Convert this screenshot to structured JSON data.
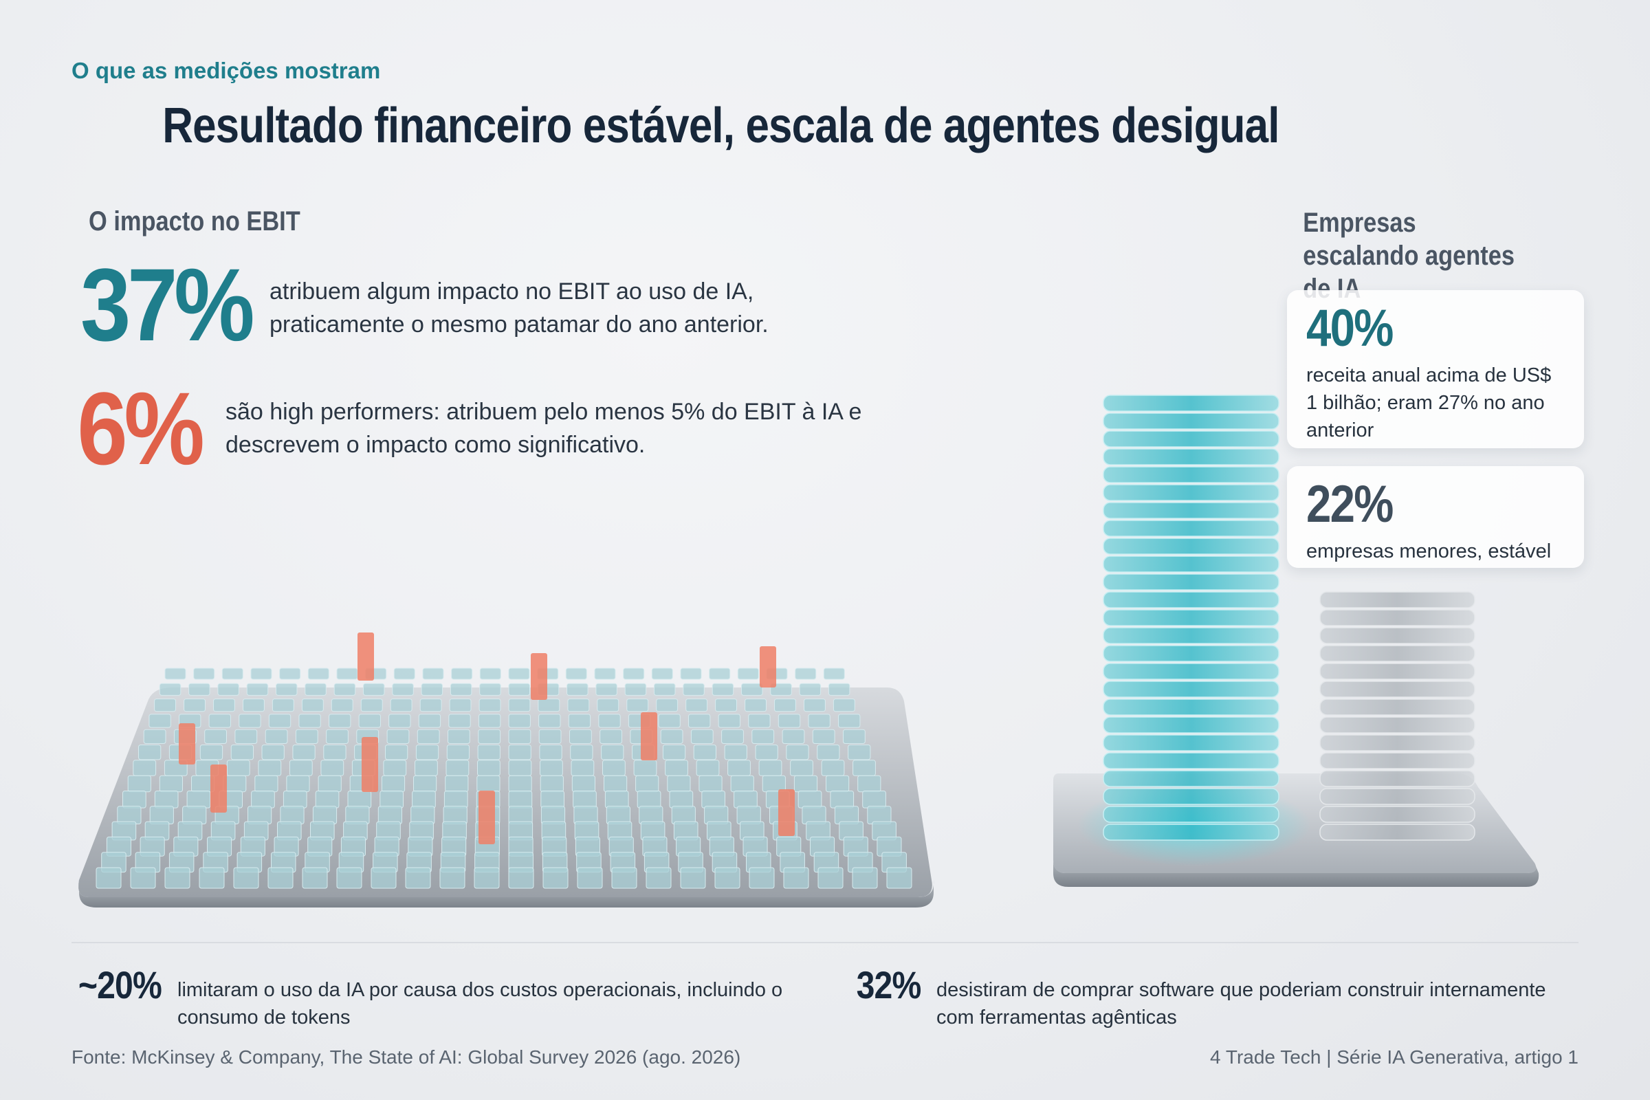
{
  "header": {
    "eyebrow": "O que as medições mostram",
    "title": "Resultado financeiro estável, escala de agentes desigual"
  },
  "ebit": {
    "heading": "O impacto no EBIT",
    "stat_main": {
      "value": "37%",
      "text": "atribuem algum impacto no EBIT ao uso de IA, praticamente o mesmo patamar do ano anterior."
    },
    "stat_high": {
      "value": "6%",
      "text": "são high performers: atribuem pelo menos 5% do EBIT à IA e descrevem o impacto como significativo."
    }
  },
  "agents": {
    "heading": "Empresas escalando agentes de IA",
    "cards": [
      {
        "value": "40%",
        "text": "receita anual acima de US$ 1 bilhão; eram 27% no ano anterior"
      },
      {
        "value": "22%",
        "text": "empresas menores, estável"
      }
    ],
    "tower_levels": {
      "large_companies_percent": 40,
      "small_companies_percent": 22
    }
  },
  "footer_stats": [
    {
      "value": "~20%",
      "text": "limitaram o uso da IA por causa dos custos operacionais, incluindo o consumo de tokens"
    },
    {
      "value": "32%",
      "text": "desistiram de comprar software que poderiam construir internamente com ferramentas agênticas"
    }
  ],
  "source": "Fonte: McKinsey & Company, The State of AI: Global Survey 2026 (ago. 2026)",
  "credit": "4 Trade Tech | Série IA Generativa, artigo 1",
  "colors": {
    "teal": "#1f7e8c",
    "coral": "#e0614a",
    "navy": "#17273a",
    "gray_text": "#4a5563"
  }
}
